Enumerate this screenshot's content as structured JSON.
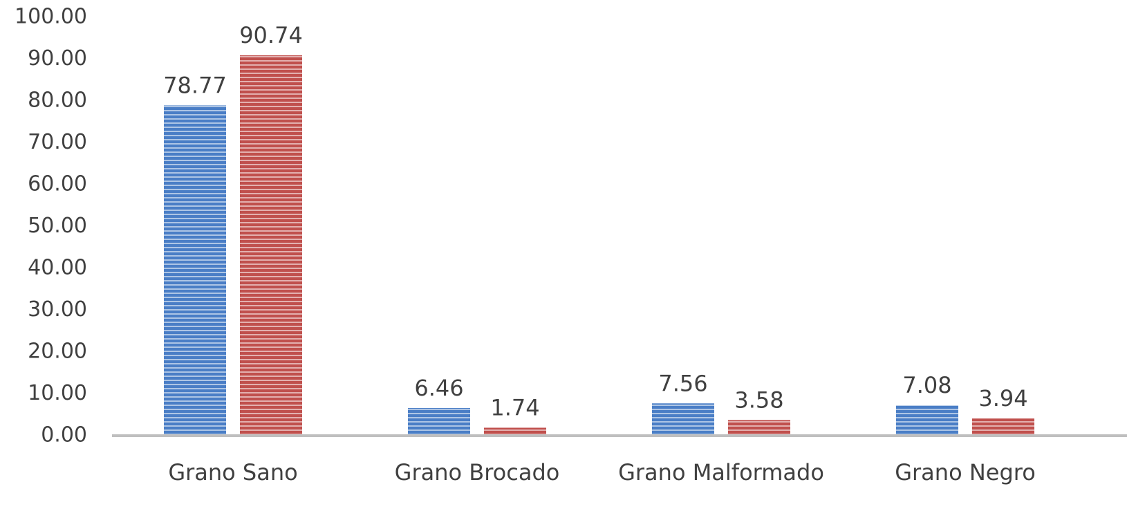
{
  "chart_data": {
    "type": "bar",
    "title": "",
    "xlabel": "",
    "ylabel": "",
    "categories": [
      "Grano Sano",
      "Grano Brocado",
      "Grano Malformado",
      "Grano Negro"
    ],
    "series": [
      {
        "values": [
          78.77,
          6.46,
          7.56,
          7.08
        ],
        "color": "#4A7EC6",
        "pattern": "horizontal-stripes"
      },
      {
        "values": [
          90.74,
          1.74,
          3.58,
          3.94
        ],
        "color": "#C0504D",
        "pattern": "horizontal-stripes"
      }
    ],
    "data_labels": [
      [
        "78.77",
        "6.46",
        "7.56",
        "7.08"
      ],
      [
        "90.74",
        "1.74",
        "3.58",
        "3.94"
      ]
    ],
    "ylim": [
      0,
      100
    ],
    "yticks": [
      "0.00",
      "10.00",
      "20.00",
      "30.00",
      "40.00",
      "50.00",
      "60.00",
      "70.00",
      "80.00",
      "90.00",
      "100.00"
    ],
    "grid": false,
    "legend": "none",
    "axis_color": "#BFBFBF",
    "text_color": "#404040"
  }
}
